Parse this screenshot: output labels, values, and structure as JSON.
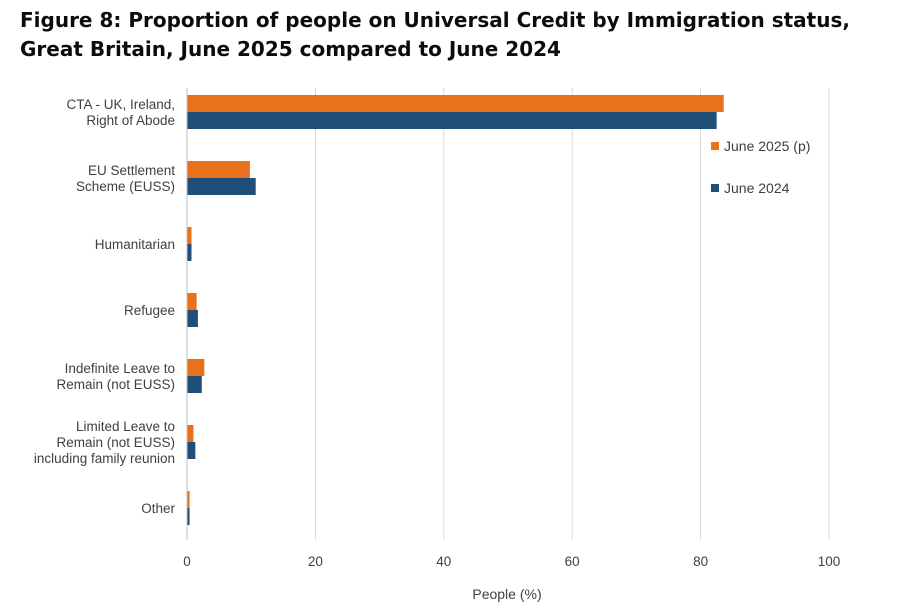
{
  "figure": {
    "title": "Figure 8: Proportion of people on Universal Credit by Immigration status, Great Britain, June 2025 compared to June 2024"
  },
  "colors": {
    "june_2025": "#e8721c",
    "june_2024": "#1f4e79",
    "grid": "#d9d9d9",
    "text": "#404040"
  },
  "chart_data": {
    "type": "bar",
    "orientation": "horizontal",
    "title": "Figure 8: Proportion of people on Universal Credit by Immigration status, Great Britain, June 2025 compared to June 2024",
    "xlabel": "People (%)",
    "ylabel": "",
    "xlim": [
      0,
      100
    ],
    "xticks": [
      0,
      20,
      40,
      60,
      80,
      100
    ],
    "grid": "vertical",
    "legend_position": "right",
    "categories": [
      [
        "CTA - UK, Ireland,",
        "Right of Abode"
      ],
      [
        "EU Settlement",
        "Scheme (EUSS)"
      ],
      [
        "Humanitarian"
      ],
      [
        "Refugee"
      ],
      [
        "Indefinite Leave to",
        "Remain (not EUSS)"
      ],
      [
        "Limited Leave to",
        "Remain (not EUSS)",
        "including family reunion"
      ],
      [
        "Other"
      ]
    ],
    "series": [
      {
        "name": "June 2025 (p)",
        "color": "#e8721c",
        "values": [
          83.6,
          9.8,
          0.7,
          1.5,
          2.7,
          1.0,
          0.4
        ]
      },
      {
        "name": "June 2024",
        "color": "#1f4e79",
        "values": [
          82.5,
          10.7,
          0.7,
          1.7,
          2.3,
          1.3,
          0.4
        ]
      }
    ]
  }
}
